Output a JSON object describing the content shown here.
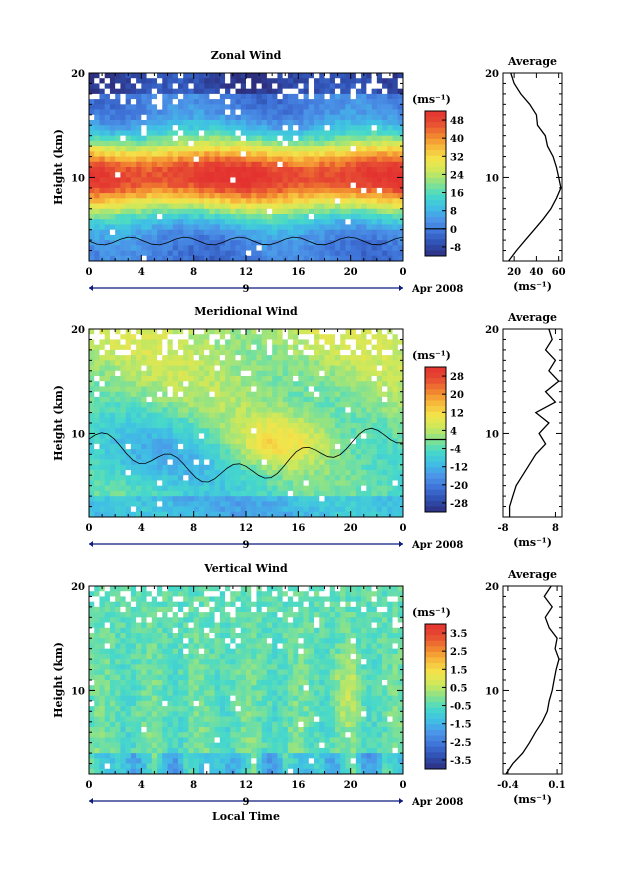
{
  "colors": {
    "scale": [
      "#2d2f7e",
      "#2f4fb0",
      "#3f73d8",
      "#4b96e8",
      "#3fbfe5",
      "#47d9c9",
      "#88e28c",
      "#cde85a",
      "#f4e44a",
      "#f7b93b",
      "#f1822f",
      "#e64a33",
      "#e3322f"
    ],
    "missing": "#ffffff",
    "line": "#000000",
    "axis_marker": "#0b1b7a"
  },
  "chart_data": [
    {
      "id": "zonal",
      "type": "heatmap",
      "title": "Zonal Wind",
      "ylabel": "Height (km)",
      "xlabel": "",
      "x_ticks": [
        "0",
        "4",
        "8",
        "12",
        "16",
        "20",
        "0"
      ],
      "xlim": [
        0,
        24
      ],
      "y_ticks": [
        "10",
        "20"
      ],
      "ylim": [
        2,
        20
      ],
      "date_label": "9",
      "date_suffix": "Apr 2008",
      "units": "(ms⁻¹)",
      "colorbar_ticks": [
        "48",
        "40",
        "32",
        "24",
        "16",
        "8",
        "0",
        "-8"
      ],
      "colorbar_range": [
        -12,
        52
      ],
      "contour_level": 0,
      "z_min_max": [
        -4,
        50
      ],
      "profile": {
        "title": "Average",
        "xlabel": "(ms⁻¹)",
        "x_ticks": [
          "20",
          "40",
          "60"
        ],
        "xlim": [
          10,
          63
        ],
        "y_ticks": [
          "10",
          "20"
        ],
        "heights": [
          2,
          3,
          4,
          5,
          6,
          7,
          8,
          9,
          10,
          11,
          12,
          13,
          14,
          15,
          16,
          17,
          18,
          19,
          20
        ],
        "values": [
          15,
          22,
          30,
          38,
          46,
          53,
          58,
          62,
          60,
          58,
          55,
          50,
          48,
          41,
          40,
          34,
          26,
          20,
          17
        ]
      }
    },
    {
      "id": "meridional",
      "type": "heatmap",
      "title": "Meridional Wind",
      "ylabel": "Height (km)",
      "xlabel": "",
      "x_ticks": [
        "0",
        "4",
        "8",
        "12",
        "16",
        "20",
        "0"
      ],
      "xlim": [
        0,
        24
      ],
      "y_ticks": [
        "10",
        "20"
      ],
      "ylim": [
        2,
        20
      ],
      "date_label": "9",
      "date_suffix": "Apr 2008",
      "units": "(ms⁻¹)",
      "colorbar_ticks": [
        "28",
        "20",
        "12",
        "4",
        "-4",
        "-12",
        "-20",
        "-28"
      ],
      "colorbar_range": [
        -32,
        32
      ],
      "contour_level": 0,
      "z_min_max": [
        -12,
        18
      ],
      "profile": {
        "title": "Average",
        "xlabel": "(ms⁻¹)",
        "x_ticks": [
          "-8",
          "8"
        ],
        "xlim": [
          -8,
          10
        ],
        "y_ticks": [
          "10",
          "20"
        ],
        "heights": [
          2,
          3,
          4,
          5,
          6,
          7,
          8,
          9,
          10,
          11,
          12,
          13,
          14,
          15,
          16,
          17,
          18,
          19,
          20
        ],
        "values": [
          -6,
          -6,
          -5,
          -4,
          -2,
          0,
          2,
          5,
          3,
          6,
          2,
          8,
          5,
          9,
          6,
          8,
          5,
          7,
          6
        ]
      }
    },
    {
      "id": "vertical",
      "type": "heatmap",
      "title": "Vertical Wind",
      "ylabel": "Height (km)",
      "xlabel": "Local Time",
      "x_ticks": [
        "0",
        "4",
        "8",
        "12",
        "16",
        "20",
        "0"
      ],
      "xlim": [
        0,
        24
      ],
      "y_ticks": [
        "10",
        "20"
      ],
      "ylim": [
        2,
        20
      ],
      "date_label": "9",
      "date_suffix": "Apr 2008",
      "units": "(ms⁻¹)",
      "colorbar_ticks": [
        "3.5",
        "2.5",
        "1.5",
        "0.5",
        "-0.5",
        "-1.5",
        "-2.5",
        "-3.5"
      ],
      "colorbar_range": [
        -4,
        4
      ],
      "contour_level": null,
      "z_min_max": [
        -2.5,
        2.5
      ],
      "profile": {
        "title": "Average",
        "xlabel": "(ms⁻¹)",
        "x_ticks": [
          "-0.4",
          "0.1"
        ],
        "xlim": [
          -0.45,
          0.15
        ],
        "y_ticks": [
          "10",
          "20"
        ],
        "heights": [
          2,
          3,
          4,
          5,
          6,
          7,
          8,
          9,
          10,
          11,
          12,
          13,
          14,
          15,
          16,
          17,
          18,
          19,
          20
        ],
        "values": [
          -0.42,
          -0.35,
          -0.25,
          -0.18,
          -0.12,
          -0.05,
          0.0,
          0.02,
          0.05,
          0.07,
          0.09,
          0.12,
          0.08,
          0.1,
          0.02,
          -0.02,
          0.05,
          -0.03,
          0.04
        ]
      }
    }
  ]
}
